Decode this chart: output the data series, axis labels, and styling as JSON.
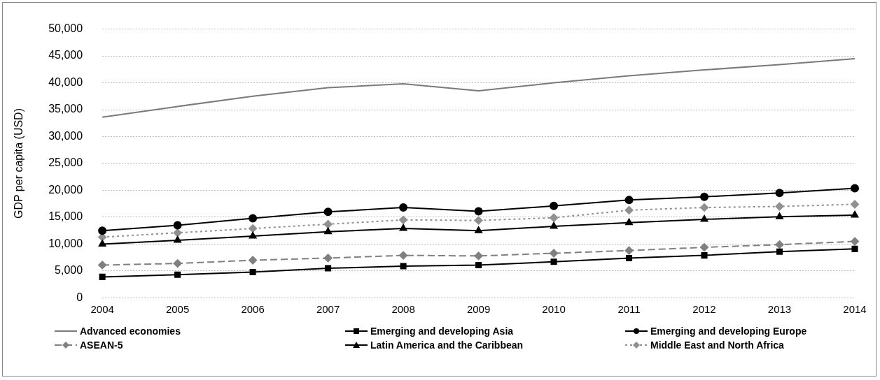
{
  "chart_data": {
    "type": "line",
    "ylabel": "GDP per capita (USD)",
    "categories": [
      "2004",
      "2005",
      "2006",
      "2007",
      "2008",
      "2009",
      "2010",
      "2011",
      "2012",
      "2013",
      "2014"
    ],
    "ylim": [
      0,
      50000
    ],
    "yticks": [
      {
        "value": 0,
        "label": "0"
      },
      {
        "value": 5000,
        "label": "5,000"
      },
      {
        "value": 10000,
        "label": "10,000"
      },
      {
        "value": 15000,
        "label": "15,000"
      },
      {
        "value": 20000,
        "label": "20,000"
      },
      {
        "value": 25000,
        "label": "25,000"
      },
      {
        "value": 30000,
        "label": "30,000"
      },
      {
        "value": 35000,
        "label": "35,000"
      },
      {
        "value": 40000,
        "label": "40,000"
      },
      {
        "value": 45000,
        "label": "45,000"
      },
      {
        "value": 50000,
        "label": "50,000"
      }
    ],
    "grid": "y",
    "legend": "bottom",
    "series": [
      {
        "name": "Advanced economies",
        "color": "#7a7a7a",
        "marker": "none",
        "line_style": "solid",
        "values": [
          33600,
          35600,
          37500,
          39100,
          39800,
          38500,
          40000,
          41300,
          42400,
          43400,
          44500
        ]
      },
      {
        "name": "Emerging and developing Asia",
        "color": "#000000",
        "marker": "square",
        "line_style": "solid",
        "values": [
          3900,
          4300,
          4800,
          5500,
          5900,
          6100,
          6700,
          7400,
          7900,
          8600,
          9100
        ]
      },
      {
        "name": "Emerging and developing Europe",
        "color": "#000000",
        "marker": "circle",
        "line_style": "solid",
        "values": [
          12500,
          13500,
          14800,
          16000,
          16800,
          16100,
          17100,
          18200,
          18800,
          19500,
          20400
        ]
      },
      {
        "name": "ASEAN-5",
        "color": "#808080",
        "marker": "diamond",
        "line_style": "dashed",
        "values": [
          6100,
          6400,
          7000,
          7400,
          7900,
          7800,
          8300,
          8800,
          9400,
          9900,
          10500
        ]
      },
      {
        "name": "Latin America and the Caribbean",
        "color": "#000000",
        "marker": "triangle",
        "line_style": "solid",
        "values": [
          10000,
          10700,
          11500,
          12300,
          12900,
          12500,
          13300,
          14000,
          14600,
          15100,
          15400
        ]
      },
      {
        "name": "Middle East and North Africa",
        "color": "#909090",
        "marker": "diamond",
        "line_style": "dotted",
        "values": [
          11300,
          12100,
          12900,
          13700,
          14500,
          14400,
          14900,
          16300,
          16800,
          17000,
          17400
        ]
      }
    ]
  }
}
